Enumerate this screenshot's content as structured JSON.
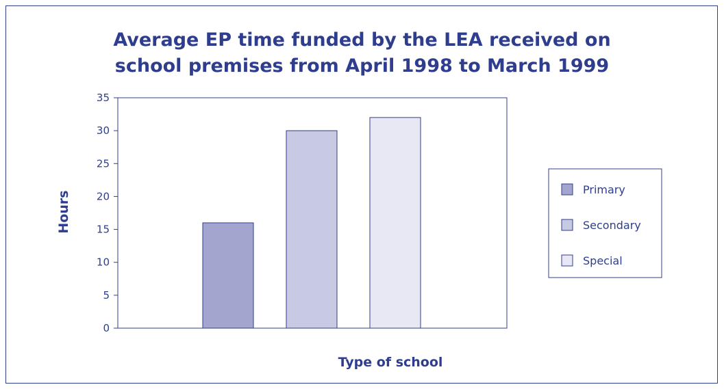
{
  "chart_data": {
    "type": "bar",
    "title_lines": [
      "Average EP time funded by the LEA received on",
      "school premises from April 1998 to March 1999"
    ],
    "xlabel": "Type of school",
    "ylabel": "Hours",
    "ylim": [
      0,
      35
    ],
    "yticks": [
      0,
      5,
      10,
      15,
      20,
      25,
      30,
      35
    ],
    "grid": false,
    "legend_position": "right",
    "series": [
      {
        "name": "Primary",
        "value": 16,
        "color": "#a3a5cf"
      },
      {
        "name": "Secondary",
        "value": 30,
        "color": "#c8c9e2"
      },
      {
        "name": "Special",
        "value": 32,
        "color": "#e8e8f4"
      }
    ],
    "bar_stroke": "#2f3d8f",
    "text_color": "#2f3d8f"
  }
}
